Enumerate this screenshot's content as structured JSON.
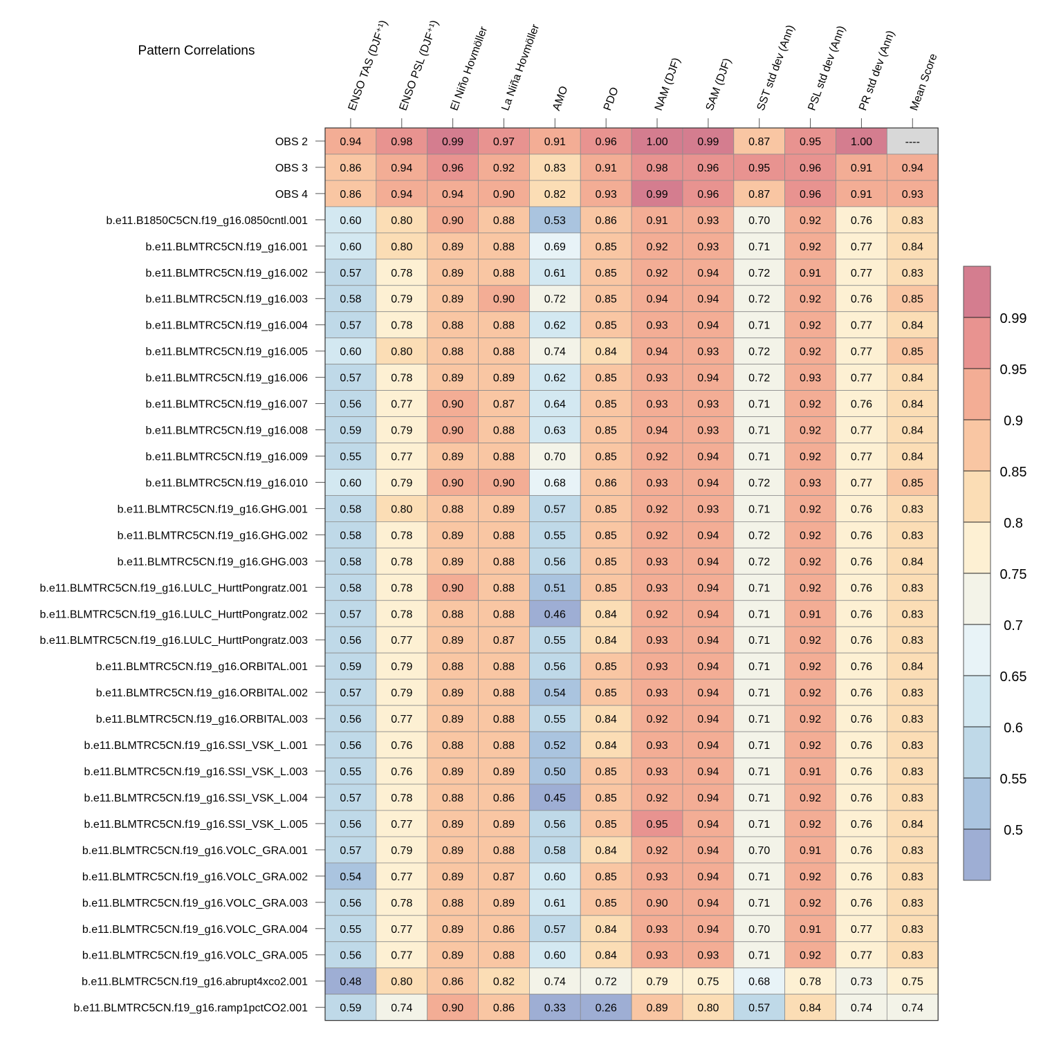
{
  "chart_data": {
    "type": "heatmap",
    "title": "Pattern Correlations",
    "columns": [
      "ENSO TAS (DJF⁺¹)",
      "ENSO PSL (DJF⁺¹)",
      "El Niño Hovmöller",
      "La Niña Hovmöller",
      "AMO",
      "PDO",
      "NAM (DJF)",
      "SAM (DJF)",
      "SST std dev (Ann)",
      "PSL std dev (Ann)",
      "PR std dev (Ann)",
      "Mean Score"
    ],
    "rows": [
      {
        "label": "OBS 2",
        "values": [
          "0.94",
          "0.98",
          "0.99",
          "0.97",
          "0.91",
          "0.96",
          "1.00",
          "0.99",
          "0.87",
          "0.95",
          "1.00",
          "----"
        ]
      },
      {
        "label": "OBS 3",
        "values": [
          "0.86",
          "0.94",
          "0.96",
          "0.92",
          "0.83",
          "0.91",
          "0.98",
          "0.96",
          "0.95",
          "0.96",
          "0.91",
          "0.94"
        ]
      },
      {
        "label": "OBS 4",
        "values": [
          "0.86",
          "0.94",
          "0.94",
          "0.90",
          "0.82",
          "0.93",
          "0.99",
          "0.96",
          "0.87",
          "0.96",
          "0.91",
          "0.93"
        ]
      },
      {
        "label": "b.e11.B1850C5CN.f19_g16.0850cntl.001",
        "values": [
          "0.60",
          "0.80",
          "0.90",
          "0.88",
          "0.53",
          "0.86",
          "0.91",
          "0.93",
          "0.70",
          "0.92",
          "0.76",
          "0.83"
        ]
      },
      {
        "label": "b.e11.BLMTRC5CN.f19_g16.001",
        "values": [
          "0.60",
          "0.80",
          "0.89",
          "0.88",
          "0.69",
          "0.85",
          "0.92",
          "0.93",
          "0.71",
          "0.92",
          "0.77",
          "0.84"
        ]
      },
      {
        "label": "b.e11.BLMTRC5CN.f19_g16.002",
        "values": [
          "0.57",
          "0.78",
          "0.89",
          "0.88",
          "0.61",
          "0.85",
          "0.92",
          "0.94",
          "0.72",
          "0.91",
          "0.77",
          "0.83"
        ]
      },
      {
        "label": "b.e11.BLMTRC5CN.f19_g16.003",
        "values": [
          "0.58",
          "0.79",
          "0.89",
          "0.90",
          "0.72",
          "0.85",
          "0.94",
          "0.94",
          "0.72",
          "0.92",
          "0.76",
          "0.85"
        ]
      },
      {
        "label": "b.e11.BLMTRC5CN.f19_g16.004",
        "values": [
          "0.57",
          "0.78",
          "0.88",
          "0.88",
          "0.62",
          "0.85",
          "0.93",
          "0.94",
          "0.71",
          "0.92",
          "0.77",
          "0.84"
        ]
      },
      {
        "label": "b.e11.BLMTRC5CN.f19_g16.005",
        "values": [
          "0.60",
          "0.80",
          "0.88",
          "0.88",
          "0.74",
          "0.84",
          "0.94",
          "0.93",
          "0.72",
          "0.92",
          "0.77",
          "0.85"
        ]
      },
      {
        "label": "b.e11.BLMTRC5CN.f19_g16.006",
        "values": [
          "0.57",
          "0.78",
          "0.89",
          "0.89",
          "0.62",
          "0.85",
          "0.93",
          "0.94",
          "0.72",
          "0.93",
          "0.77",
          "0.84"
        ]
      },
      {
        "label": "b.e11.BLMTRC5CN.f19_g16.007",
        "values": [
          "0.56",
          "0.77",
          "0.90",
          "0.87",
          "0.64",
          "0.85",
          "0.93",
          "0.93",
          "0.71",
          "0.92",
          "0.76",
          "0.84"
        ]
      },
      {
        "label": "b.e11.BLMTRC5CN.f19_g16.008",
        "values": [
          "0.59",
          "0.79",
          "0.90",
          "0.88",
          "0.63",
          "0.85",
          "0.94",
          "0.93",
          "0.71",
          "0.92",
          "0.77",
          "0.84"
        ]
      },
      {
        "label": "b.e11.BLMTRC5CN.f19_g16.009",
        "values": [
          "0.55",
          "0.77",
          "0.89",
          "0.88",
          "0.70",
          "0.85",
          "0.92",
          "0.94",
          "0.71",
          "0.92",
          "0.77",
          "0.84"
        ]
      },
      {
        "label": "b.e11.BLMTRC5CN.f19_g16.010",
        "values": [
          "0.60",
          "0.79",
          "0.90",
          "0.90",
          "0.68",
          "0.86",
          "0.93",
          "0.94",
          "0.72",
          "0.93",
          "0.77",
          "0.85"
        ]
      },
      {
        "label": "b.e11.BLMTRC5CN.f19_g16.GHG.001",
        "values": [
          "0.58",
          "0.80",
          "0.88",
          "0.89",
          "0.57",
          "0.85",
          "0.92",
          "0.93",
          "0.71",
          "0.92",
          "0.76",
          "0.83"
        ]
      },
      {
        "label": "b.e11.BLMTRC5CN.f19_g16.GHG.002",
        "values": [
          "0.58",
          "0.78",
          "0.89",
          "0.88",
          "0.55",
          "0.85",
          "0.92",
          "0.94",
          "0.72",
          "0.92",
          "0.76",
          "0.83"
        ]
      },
      {
        "label": "b.e11.BLMTRC5CN.f19_g16.GHG.003",
        "values": [
          "0.58",
          "0.78",
          "0.89",
          "0.88",
          "0.56",
          "0.85",
          "0.93",
          "0.94",
          "0.72",
          "0.92",
          "0.76",
          "0.84"
        ]
      },
      {
        "label": "b.e11.BLMTRC5CN.f19_g16.LULC_HurttPongratz.001",
        "values": [
          "0.58",
          "0.78",
          "0.90",
          "0.88",
          "0.51",
          "0.85",
          "0.93",
          "0.94",
          "0.71",
          "0.92",
          "0.76",
          "0.83"
        ]
      },
      {
        "label": "b.e11.BLMTRC5CN.f19_g16.LULC_HurttPongratz.002",
        "values": [
          "0.57",
          "0.78",
          "0.88",
          "0.88",
          "0.46",
          "0.84",
          "0.92",
          "0.94",
          "0.71",
          "0.91",
          "0.76",
          "0.83"
        ]
      },
      {
        "label": "b.e11.BLMTRC5CN.f19_g16.LULC_HurttPongratz.003",
        "values": [
          "0.56",
          "0.77",
          "0.89",
          "0.87",
          "0.55",
          "0.84",
          "0.93",
          "0.94",
          "0.71",
          "0.92",
          "0.76",
          "0.83"
        ]
      },
      {
        "label": "b.e11.BLMTRC5CN.f19_g16.ORBITAL.001",
        "values": [
          "0.59",
          "0.79",
          "0.88",
          "0.88",
          "0.56",
          "0.85",
          "0.93",
          "0.94",
          "0.71",
          "0.92",
          "0.76",
          "0.84"
        ]
      },
      {
        "label": "b.e11.BLMTRC5CN.f19_g16.ORBITAL.002",
        "values": [
          "0.57",
          "0.79",
          "0.89",
          "0.88",
          "0.54",
          "0.85",
          "0.93",
          "0.94",
          "0.71",
          "0.92",
          "0.76",
          "0.83"
        ]
      },
      {
        "label": "b.e11.BLMTRC5CN.f19_g16.ORBITAL.003",
        "values": [
          "0.56",
          "0.77",
          "0.89",
          "0.88",
          "0.55",
          "0.84",
          "0.92",
          "0.94",
          "0.71",
          "0.92",
          "0.76",
          "0.83"
        ]
      },
      {
        "label": "b.e11.BLMTRC5CN.f19_g16.SSI_VSK_L.001",
        "values": [
          "0.56",
          "0.76",
          "0.88",
          "0.88",
          "0.52",
          "0.84",
          "0.93",
          "0.94",
          "0.71",
          "0.92",
          "0.76",
          "0.83"
        ]
      },
      {
        "label": "b.e11.BLMTRC5CN.f19_g16.SSI_VSK_L.003",
        "values": [
          "0.55",
          "0.76",
          "0.89",
          "0.89",
          "0.50",
          "0.85",
          "0.93",
          "0.94",
          "0.71",
          "0.91",
          "0.76",
          "0.83"
        ]
      },
      {
        "label": "b.e11.BLMTRC5CN.f19_g16.SSI_VSK_L.004",
        "values": [
          "0.57",
          "0.78",
          "0.88",
          "0.86",
          "0.45",
          "0.85",
          "0.92",
          "0.94",
          "0.71",
          "0.92",
          "0.76",
          "0.83"
        ]
      },
      {
        "label": "b.e11.BLMTRC5CN.f19_g16.SSI_VSK_L.005",
        "values": [
          "0.56",
          "0.77",
          "0.89",
          "0.89",
          "0.56",
          "0.85",
          "0.95",
          "0.94",
          "0.71",
          "0.92",
          "0.76",
          "0.84"
        ]
      },
      {
        "label": "b.e11.BLMTRC5CN.f19_g16.VOLC_GRA.001",
        "values": [
          "0.57",
          "0.79",
          "0.89",
          "0.88",
          "0.58",
          "0.84",
          "0.92",
          "0.94",
          "0.70",
          "0.91",
          "0.76",
          "0.83"
        ]
      },
      {
        "label": "b.e11.BLMTRC5CN.f19_g16.VOLC_GRA.002",
        "values": [
          "0.54",
          "0.77",
          "0.89",
          "0.87",
          "0.60",
          "0.85",
          "0.93",
          "0.94",
          "0.71",
          "0.92",
          "0.76",
          "0.83"
        ]
      },
      {
        "label": "b.e11.BLMTRC5CN.f19_g16.VOLC_GRA.003",
        "values": [
          "0.56",
          "0.78",
          "0.88",
          "0.89",
          "0.61",
          "0.85",
          "0.90",
          "0.94",
          "0.71",
          "0.92",
          "0.76",
          "0.83"
        ]
      },
      {
        "label": "b.e11.BLMTRC5CN.f19_g16.VOLC_GRA.004",
        "values": [
          "0.55",
          "0.77",
          "0.89",
          "0.86",
          "0.57",
          "0.84",
          "0.93",
          "0.94",
          "0.70",
          "0.91",
          "0.77",
          "0.83"
        ]
      },
      {
        "label": "b.e11.BLMTRC5CN.f19_g16.VOLC_GRA.005",
        "values": [
          "0.56",
          "0.77",
          "0.89",
          "0.88",
          "0.60",
          "0.84",
          "0.93",
          "0.93",
          "0.71",
          "0.92",
          "0.77",
          "0.83"
        ]
      },
      {
        "label": "b.e11.BLMTRC5CN.f19_g16.abrupt4xco2.001",
        "values": [
          "0.48",
          "0.80",
          "0.86",
          "0.82",
          "0.74",
          "0.72",
          "0.79",
          "0.75",
          "0.68",
          "0.78",
          "0.73",
          "0.75"
        ]
      },
      {
        "label": "b.e11.BLMTRC5CN.f19_g16.ramp1pctCO2.001",
        "values": [
          "0.59",
          "0.74",
          "0.90",
          "0.86",
          "0.33",
          "0.26",
          "0.89",
          "0.80",
          "0.57",
          "0.84",
          "0.74",
          "0.74"
        ]
      }
    ],
    "colorbar": {
      "levels": [
        0.5,
        0.55,
        0.6,
        0.65,
        0.7,
        0.75,
        0.8,
        0.85,
        0.9,
        0.95,
        0.99
      ],
      "tick_labels": [
        "0.5",
        "0.55",
        "0.6",
        "0.65",
        "0.7",
        "0.75",
        "0.8",
        "0.85",
        "0.9",
        "0.95",
        "0.99"
      ],
      "colors": [
        "#9eaed4",
        "#aac4df",
        "#bfd9e8",
        "#d3e8f1",
        "#e8f3f7",
        "#f3f3e8",
        "#fdf0d3",
        "#fbddb5",
        "#f9c6a3",
        "#f3ad95",
        "#e89390",
        "#d47d8f"
      ],
      "missing_color": "#d8d8d8"
    }
  }
}
